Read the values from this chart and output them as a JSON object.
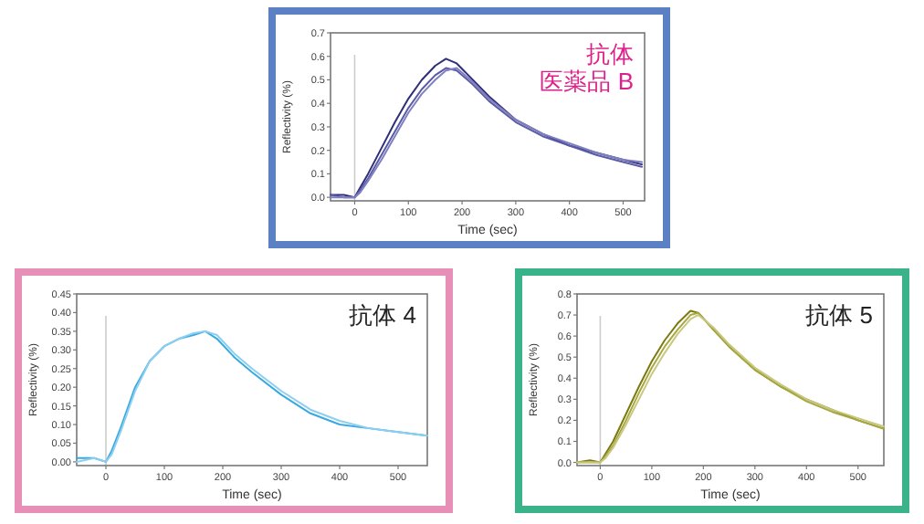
{
  "chart_data": [
    {
      "type": "line",
      "title": "抗体",
      "subtitle": "医薬品 B",
      "xlabel": "Time (sec)",
      "ylabel": "Reflectivity (%)",
      "xlim": [
        -45,
        540
      ],
      "xticks": [
        0,
        100,
        200,
        300,
        400,
        500
      ],
      "ylim": [
        -0.015,
        0.7
      ],
      "yticks": [
        {
          "value": 0,
          "label": "0.0"
        },
        0.1,
        0.2,
        0.3,
        0.4,
        0.5,
        0.6,
        0.7
      ],
      "grid": false,
      "marker": "none",
      "line_style": "solid",
      "ref_lines": [
        {
          "axis": "x",
          "value": 0,
          "color": "#cccccc"
        }
      ],
      "x": [
        -45,
        -20,
        0,
        10,
        25,
        50,
        75,
        100,
        125,
        150,
        170,
        190,
        220,
        250,
        300,
        350,
        400,
        450,
        500,
        535
      ],
      "series": [
        {
          "color": "#2e2e7a",
          "values": [
            0.01,
            0.01,
            0.0,
            0.04,
            0.1,
            0.21,
            0.32,
            0.42,
            0.5,
            0.56,
            0.59,
            0.57,
            0.5,
            0.43,
            0.33,
            0.27,
            0.22,
            0.19,
            0.16,
            0.14
          ]
        },
        {
          "color": "#5a5aa8",
          "values": [
            0.01,
            0.0,
            0.0,
            0.03,
            0.08,
            0.18,
            0.28,
            0.38,
            0.46,
            0.52,
            0.55,
            0.54,
            0.48,
            0.41,
            0.32,
            0.26,
            0.22,
            0.18,
            0.15,
            0.13
          ]
        },
        {
          "color": "#8080c0",
          "values": [
            0.0,
            0.0,
            0.0,
            0.02,
            0.07,
            0.16,
            0.26,
            0.36,
            0.44,
            0.5,
            0.54,
            0.55,
            0.49,
            0.42,
            0.33,
            0.27,
            0.23,
            0.19,
            0.16,
            0.15
          ]
        }
      ]
    },
    {
      "type": "line",
      "title": "抗体 4",
      "xlabel": "Time (sec)",
      "ylabel": "Reflectivity (%)",
      "xlim": [
        -50,
        550
      ],
      "xticks": [
        0,
        100,
        200,
        300,
        400,
        500
      ],
      "ylim": [
        -0.01,
        0.45
      ],
      "yticks": [
        {
          "value": 0,
          "label": "0.00"
        },
        0.05,
        {
          "value": 0.1,
          "label": "0.10"
        },
        0.15,
        {
          "value": 0.2,
          "label": "0.20"
        },
        0.25,
        {
          "value": 0.3,
          "label": "0.30"
        },
        0.35,
        {
          "value": 0.4,
          "label": "0.40"
        },
        0.45
      ],
      "grid": false,
      "marker": "none",
      "line_style": "solid",
      "ref_lines": [
        {
          "axis": "x",
          "value": 0,
          "color": "#cccccc"
        }
      ],
      "x": [
        -50,
        -20,
        0,
        10,
        25,
        50,
        75,
        100,
        125,
        150,
        170,
        190,
        220,
        250,
        300,
        350,
        400,
        450,
        500,
        550
      ],
      "series": [
        {
          "color": "#3aa8e0",
          "values": [
            0.01,
            0.01,
            0.0,
            0.03,
            0.09,
            0.2,
            0.27,
            0.31,
            0.33,
            0.34,
            0.35,
            0.33,
            0.28,
            0.24,
            0.18,
            0.13,
            0.1,
            0.09,
            0.08,
            0.07
          ]
        },
        {
          "color": "#8dcff0",
          "values": [
            0.0,
            0.01,
            0.0,
            0.02,
            0.08,
            0.19,
            0.27,
            0.31,
            0.33,
            0.345,
            0.35,
            0.34,
            0.29,
            0.25,
            0.19,
            0.14,
            0.11,
            0.09,
            0.08,
            0.07
          ]
        }
      ]
    },
    {
      "type": "line",
      "title": "抗体 5",
      "xlabel": "Time (sec)",
      "ylabel": "Reflectivity (%)",
      "xlim": [
        -45,
        550
      ],
      "xticks": [
        0,
        100,
        200,
        300,
        400,
        500
      ],
      "ylim": [
        -0.015,
        0.8
      ],
      "yticks": [
        {
          "value": 0,
          "label": "0.0"
        },
        0.1,
        0.2,
        0.3,
        0.4,
        0.5,
        0.6,
        0.7,
        0.8
      ],
      "grid": false,
      "marker": "none",
      "line_style": "solid",
      "ref_lines": [
        {
          "axis": "x",
          "value": 0,
          "color": "#cccccc"
        }
      ],
      "x": [
        -45,
        -20,
        0,
        10,
        25,
        50,
        75,
        100,
        125,
        150,
        175,
        190,
        220,
        250,
        300,
        350,
        400,
        450,
        500,
        550
      ],
      "series": [
        {
          "color": "#7a7a10",
          "values": [
            0.0,
            0.01,
            0.0,
            0.04,
            0.1,
            0.23,
            0.36,
            0.48,
            0.58,
            0.66,
            0.72,
            0.71,
            0.63,
            0.55,
            0.44,
            0.36,
            0.3,
            0.25,
            0.2,
            0.16
          ]
        },
        {
          "color": "#a8a840",
          "values": [
            0.0,
            0.0,
            0.0,
            0.03,
            0.08,
            0.2,
            0.33,
            0.45,
            0.55,
            0.63,
            0.7,
            0.71,
            0.63,
            0.55,
            0.44,
            0.36,
            0.29,
            0.24,
            0.2,
            0.16
          ]
        },
        {
          "color": "#c8c880",
          "values": [
            0.0,
            0.0,
            0.0,
            0.02,
            0.07,
            0.18,
            0.3,
            0.42,
            0.52,
            0.61,
            0.68,
            0.7,
            0.64,
            0.56,
            0.45,
            0.37,
            0.3,
            0.25,
            0.21,
            0.17
          ]
        }
      ]
    }
  ]
}
